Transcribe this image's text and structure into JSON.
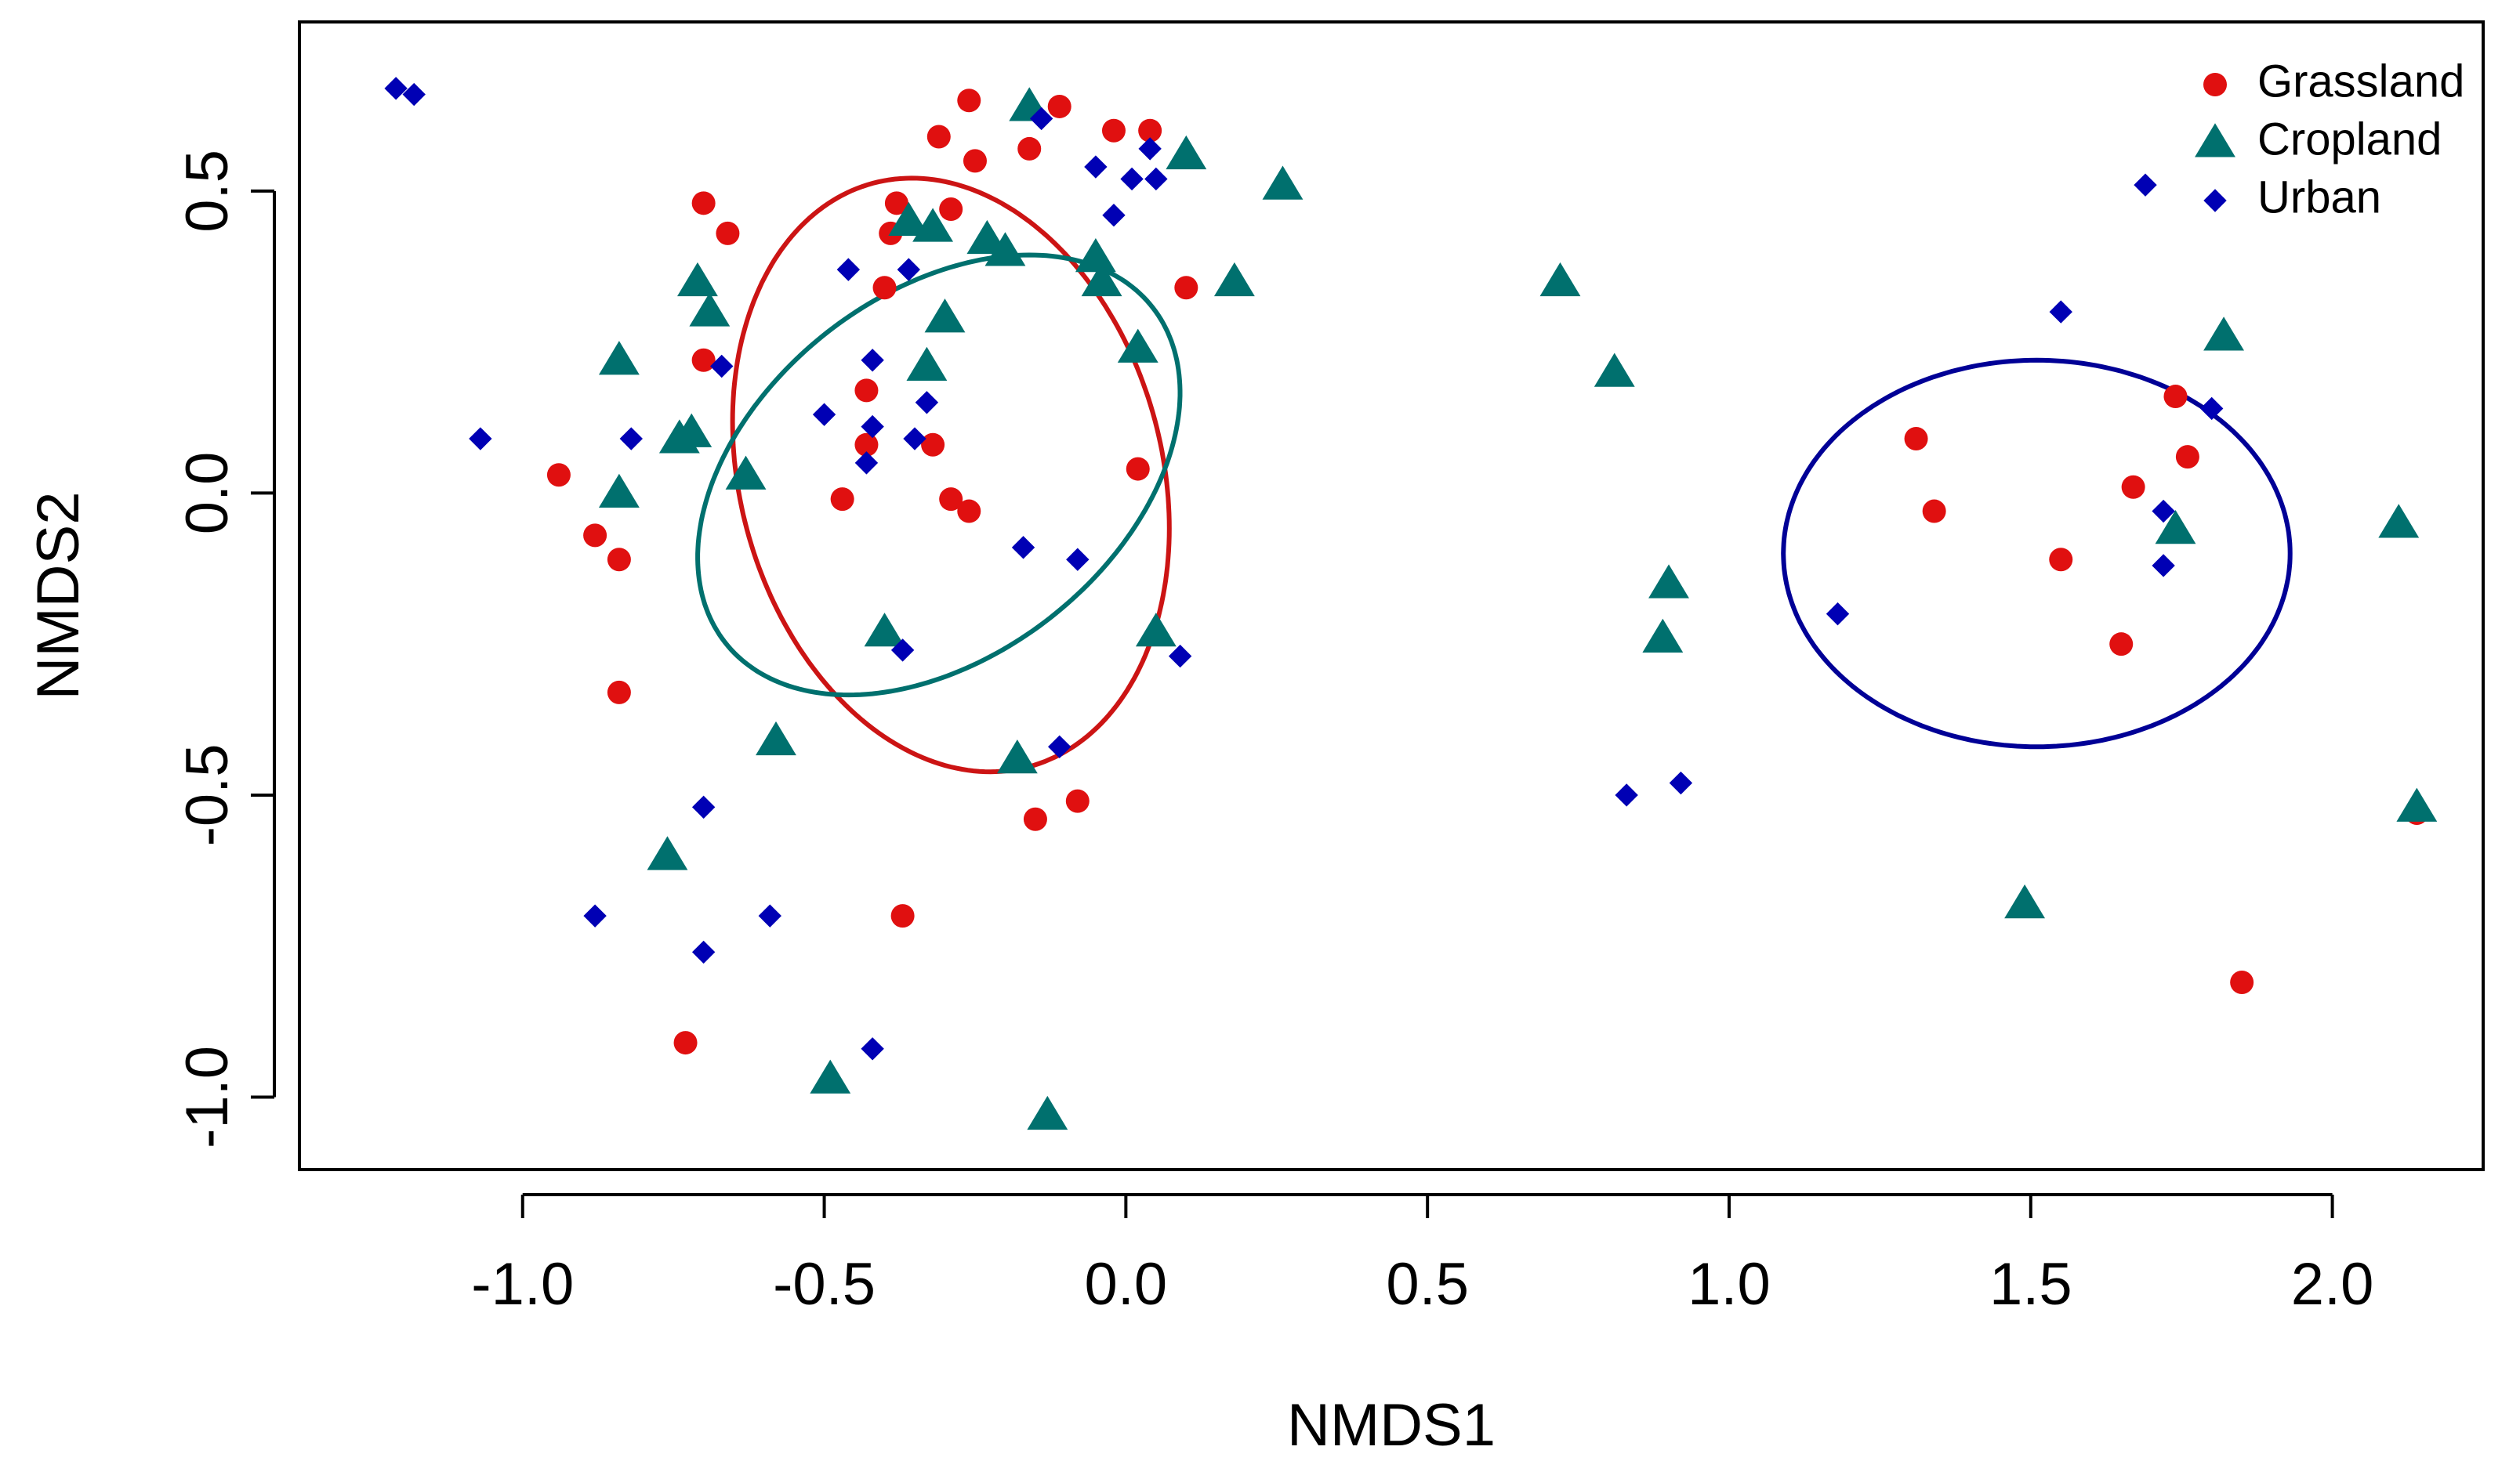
{
  "chart_data": {
    "type": "scatter",
    "title": "",
    "xlabel": "NMDS1",
    "ylabel": "NMDS2",
    "xlim": [
      -1.37,
      2.25
    ],
    "ylim": [
      -1.12,
      0.78
    ],
    "xticks": [
      -1.0,
      -0.5,
      0.0,
      0.5,
      1.0,
      1.5,
      2.0
    ],
    "yticks": [
      -1.0,
      -0.5,
      0.0,
      0.5
    ],
    "xtick_labels": [
      "-1.0",
      "-0.5",
      "0.0",
      "0.5",
      "1.0",
      "1.5",
      "2.0"
    ],
    "ytick_labels": [
      "-1.0",
      "-0.5",
      "0.0",
      "0.5"
    ],
    "grid": false,
    "legend_position": "top-right",
    "series": [
      {
        "name": "Grassland",
        "color": "#e01010",
        "marker": "circle",
        "points": [
          [
            -0.26,
            0.65
          ],
          [
            -0.11,
            0.64
          ],
          [
            -0.31,
            0.59
          ],
          [
            -0.02,
            0.6
          ],
          [
            0.04,
            0.6
          ],
          [
            -0.16,
            0.57
          ],
          [
            -0.25,
            0.55
          ],
          [
            -0.7,
            0.48
          ],
          [
            -0.38,
            0.48
          ],
          [
            -0.29,
            0.47
          ],
          [
            -0.66,
            0.43
          ],
          [
            -0.39,
            0.43
          ],
          [
            -0.4,
            0.34
          ],
          [
            0.1,
            0.34
          ],
          [
            -0.7,
            0.22
          ],
          [
            -0.43,
            0.17
          ],
          [
            -0.43,
            0.08
          ],
          [
            -0.32,
            0.08
          ],
          [
            -0.94,
            0.03
          ],
          [
            0.02,
            0.04
          ],
          [
            -0.47,
            -0.01
          ],
          [
            -0.29,
            -0.01
          ],
          [
            -0.26,
            -0.03
          ],
          [
            -0.88,
            -0.07
          ],
          [
            -0.84,
            -0.11
          ],
          [
            -0.84,
            -0.33
          ],
          [
            -0.08,
            -0.51
          ],
          [
            -0.15,
            -0.54
          ],
          [
            -0.37,
            -0.7
          ],
          [
            -0.73,
            -0.91
          ],
          [
            1.31,
            0.09
          ],
          [
            1.34,
            -0.03
          ],
          [
            1.67,
            0.01
          ],
          [
            1.76,
            0.06
          ],
          [
            1.74,
            0.16
          ],
          [
            1.55,
            -0.11
          ],
          [
            1.65,
            -0.25
          ],
          [
            1.85,
            -0.81
          ],
          [
            2.14,
            -0.53
          ]
        ]
      },
      {
        "name": "Cropland",
        "color": "#00706e",
        "marker": "triangle",
        "points": [
          [
            -0.16,
            0.64
          ],
          [
            0.1,
            0.56
          ],
          [
            0.26,
            0.51
          ],
          [
            -0.32,
            0.44
          ],
          [
            -0.36,
            0.45
          ],
          [
            -0.23,
            0.42
          ],
          [
            -0.05,
            0.39
          ],
          [
            -0.04,
            0.35
          ],
          [
            -0.71,
            0.35
          ],
          [
            0.18,
            0.35
          ],
          [
            -0.69,
            0.3
          ],
          [
            -0.3,
            0.29
          ],
          [
            0.02,
            0.24
          ],
          [
            -0.84,
            0.22
          ],
          [
            -0.33,
            0.21
          ],
          [
            -0.72,
            0.1
          ],
          [
            -0.74,
            0.09
          ],
          [
            -0.63,
            0.03
          ],
          [
            -0.84,
            0.0
          ],
          [
            -0.2,
            0.4
          ],
          [
            -0.4,
            -0.23
          ],
          [
            0.05,
            -0.23
          ],
          [
            -0.58,
            -0.41
          ],
          [
            -0.18,
            -0.44
          ],
          [
            -0.76,
            -0.6
          ],
          [
            -0.49,
            -0.97
          ],
          [
            -0.13,
            -1.03
          ],
          [
            0.72,
            0.35
          ],
          [
            0.81,
            0.2
          ],
          [
            0.9,
            -0.15
          ],
          [
            0.89,
            -0.24
          ],
          [
            1.49,
            -0.68
          ],
          [
            1.82,
            0.26
          ],
          [
            1.74,
            -0.06
          ],
          [
            2.11,
            -0.05
          ],
          [
            2.14,
            -0.52
          ]
        ]
      },
      {
        "name": "Urban",
        "color": "#0000b4",
        "marker": "diamond",
        "points": [
          [
            -1.21,
            0.67
          ],
          [
            -1.18,
            0.66
          ],
          [
            -0.14,
            0.62
          ],
          [
            0.04,
            0.57
          ],
          [
            -0.05,
            0.54
          ],
          [
            0.01,
            0.52
          ],
          [
            0.05,
            0.52
          ],
          [
            -0.02,
            0.46
          ],
          [
            -0.46,
            0.37
          ],
          [
            -0.36,
            0.37
          ],
          [
            -0.42,
            0.22
          ],
          [
            -0.33,
            0.15
          ],
          [
            -0.67,
            0.21
          ],
          [
            -0.5,
            0.13
          ],
          [
            -0.42,
            0.11
          ],
          [
            -0.35,
            0.09
          ],
          [
            -0.82,
            0.09
          ],
          [
            -1.07,
            0.09
          ],
          [
            -0.43,
            0.05
          ],
          [
            -0.17,
            -0.09
          ],
          [
            -0.08,
            -0.11
          ],
          [
            -0.37,
            -0.26
          ],
          [
            0.09,
            -0.27
          ],
          [
            -0.11,
            -0.42
          ],
          [
            -0.7,
            -0.52
          ],
          [
            -0.88,
            -0.7
          ],
          [
            -0.59,
            -0.7
          ],
          [
            -0.7,
            -0.76
          ],
          [
            -0.42,
            -0.92
          ],
          [
            1.55,
            0.3
          ],
          [
            1.69,
            0.51
          ],
          [
            1.8,
            0.14
          ],
          [
            1.72,
            -0.03
          ],
          [
            1.72,
            -0.12
          ],
          [
            1.18,
            -0.2
          ],
          [
            0.83,
            -0.5
          ],
          [
            0.92,
            -0.48
          ]
        ]
      }
    ],
    "ellipses": [
      {
        "series": "Grassland",
        "color": "#cc1414",
        "center": [
          -0.29,
          0.03
        ],
        "rx": 0.35,
        "ry": 0.5,
        "rotation_deg": 15
      },
      {
        "series": "Cropland",
        "color": "#00706e",
        "center": [
          -0.31,
          0.03
        ],
        "rx": 0.45,
        "ry": 0.3,
        "rotation_deg": 38
      },
      {
        "series": "Urban",
        "color": "#000096",
        "center": [
          1.51,
          -0.1
        ],
        "rx": 0.42,
        "ry": 0.32,
        "rotation_deg": 0
      }
    ],
    "legend": [
      {
        "label": "Grassland",
        "color": "#e01010",
        "marker": "circle"
      },
      {
        "label": "Cropland",
        "color": "#00706e",
        "marker": "triangle"
      },
      {
        "label": "Urban",
        "color": "#0000b4",
        "marker": "diamond"
      }
    ]
  }
}
